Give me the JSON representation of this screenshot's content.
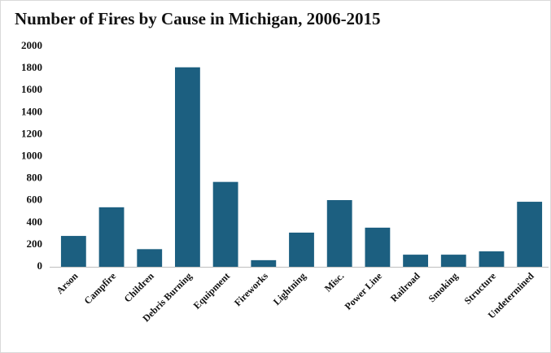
{
  "chart_data": {
    "type": "bar",
    "title": "Number of Fires by Cause in Michigan, 2006-2015",
    "categories": [
      "Arson",
      "Campfire",
      "Children",
      "Debris Burning",
      "Equipment",
      "Fireworks",
      "Lightning",
      "Misc.",
      "Power Line",
      "Railroad",
      "Smoking",
      "Structure",
      "Undetermined"
    ],
    "values": [
      280,
      540,
      160,
      1810,
      770,
      60,
      310,
      605,
      355,
      110,
      110,
      140,
      590
    ],
    "color": "#1c5f80",
    "ylim": [
      0,
      2000
    ],
    "yticks": [
      0,
      200,
      400,
      600,
      800,
      1000,
      1200,
      1400,
      1600,
      1800,
      2000
    ],
    "grid": false
  }
}
